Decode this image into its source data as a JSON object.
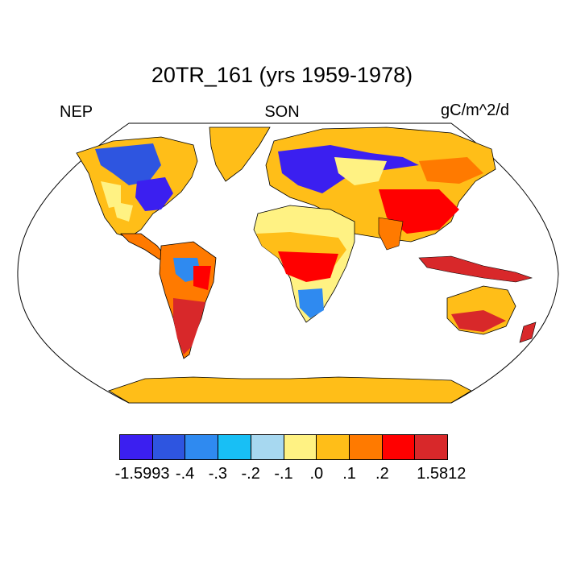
{
  "title": "20TR_161 (yrs 1959-1978)",
  "left_label": "NEP",
  "center_label": "SON",
  "right_label": "gC/m^2/d",
  "legend": {
    "colors": [
      "#3b1ff0",
      "#2e55e0",
      "#2f8af0",
      "#18bff5",
      "#a7d8f0",
      "#fff283",
      "#ffbe18",
      "#ff7a00",
      "#ff0000",
      "#d8282a"
    ],
    "labels": [
      "-1.5993",
      "-.4",
      "-.3",
      "-.2",
      "-.1",
      ".0",
      ".1",
      ".2",
      "1.5812"
    ]
  }
}
